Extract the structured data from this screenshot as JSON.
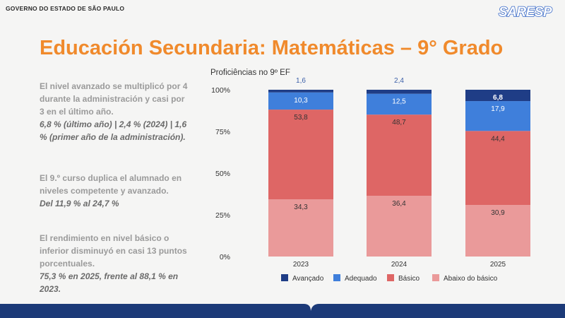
{
  "header": {
    "org": "GOVERNO DO ESTADO DE SÃO PAULO",
    "logo_text": "SARESP"
  },
  "title": "Educación Secundaria: Matemáticas – 9° Grado",
  "bullets": [
    {
      "main": "El nivel avanzado se multiplicó por 4 durante la administración y casi por 3 en el último año.",
      "em": "6,8 % (último año) | 2,4 % (2024) | 1,6 % (primer año de la administración)."
    },
    {
      "main": "El 9.º curso duplica el alumnado en niveles competente y avanzado.",
      "em": "Del 11,9 % al 24,7 %"
    },
    {
      "main": "El rendimiento en nivel básico o inferior disminuyó en casi 13 puntos porcentuales.",
      "em": "75,3 % en 2025, frente al 88,1 % en 2023."
    }
  ],
  "colors": {
    "accent": "#f08a2c",
    "avancado": "#1f3d86",
    "adequado": "#3f7fdb",
    "basico": "#de6665",
    "abaixo": "#ea9a9a",
    "band": "#1c3a78"
  },
  "chart_data": {
    "type": "bar",
    "stacked": true,
    "title": "Proficiências no 9º EF",
    "categories": [
      "2023",
      "2024",
      "2025"
    ],
    "ylim": [
      0,
      100
    ],
    "y_ticks": [
      "0%",
      "25%",
      "50%",
      "75%",
      "100%"
    ],
    "legend_position": "bottom",
    "series": [
      {
        "name": "Abaixo do básico",
        "values": [
          34.3,
          36.4,
          30.9
        ],
        "labels": [
          "34,3",
          "36,4",
          "30,9"
        ],
        "color": "#ea9a9a"
      },
      {
        "name": "Básico",
        "values": [
          53.8,
          48.7,
          44.4
        ],
        "labels": [
          "53,8",
          "48,7",
          "44,4"
        ],
        "color": "#de6665"
      },
      {
        "name": "Adequado",
        "values": [
          10.3,
          12.5,
          17.9
        ],
        "labels": [
          "10,3",
          "12,5",
          "17,9"
        ],
        "color": "#3f7fdb"
      },
      {
        "name": "Avançado",
        "values": [
          1.6,
          2.4,
          6.8
        ],
        "labels": [
          "1,6",
          "2,4",
          "6,8"
        ],
        "color": "#1f3d86"
      }
    ],
    "legend_order": [
      "Avançado",
      "Adequado",
      "Básico",
      "Abaixo do básico"
    ]
  }
}
